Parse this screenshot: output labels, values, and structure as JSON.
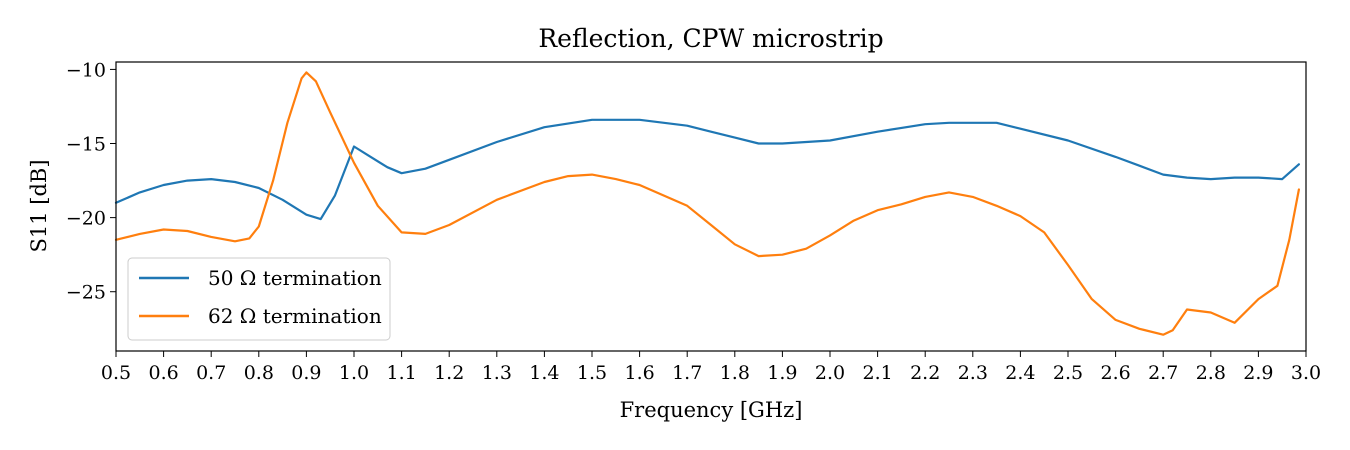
{
  "chart_data": {
    "type": "line",
    "title": "Reflection, CPW microstrip",
    "xlabel": "Frequency [GHz]",
    "ylabel": "S11 [dB]",
    "xlim": [
      0.5,
      3.0
    ],
    "ylim": [
      -29.0,
      -9.5
    ],
    "xticks": [
      "0.5",
      "0.6",
      "0.7",
      "0.8",
      "0.9",
      "1.0",
      "1.1",
      "1.2",
      "1.3",
      "1.4",
      "1.5",
      "1.6",
      "1.7",
      "1.8",
      "1.9",
      "2.0",
      "2.1",
      "2.2",
      "2.3",
      "2.4",
      "2.5",
      "2.6",
      "2.7",
      "2.8",
      "2.9",
      "3.0"
    ],
    "yticks": [
      {
        "value": -10,
        "label": "−10"
      },
      {
        "value": -15,
        "label": "−15"
      },
      {
        "value": -20,
        "label": "−20"
      },
      {
        "value": -25,
        "label": "−25"
      }
    ],
    "grid": false,
    "legend_position": "lower-left",
    "series": [
      {
        "name": "50 Ω termination",
        "color": "#1f77b4",
        "x": [
          0.5,
          0.55,
          0.6,
          0.65,
          0.7,
          0.75,
          0.8,
          0.85,
          0.9,
          0.93,
          0.96,
          1.0,
          1.03,
          1.07,
          1.1,
          1.15,
          1.2,
          1.3,
          1.4,
          1.5,
          1.6,
          1.7,
          1.75,
          1.8,
          1.85,
          1.9,
          2.0,
          2.1,
          2.2,
          2.25,
          2.3,
          2.35,
          2.4,
          2.5,
          2.6,
          2.65,
          2.7,
          2.75,
          2.8,
          2.85,
          2.9,
          2.95,
          2.985
        ],
        "y": [
          -19.0,
          -18.3,
          -17.8,
          -17.5,
          -17.4,
          -17.6,
          -18.0,
          -18.8,
          -19.8,
          -20.1,
          -18.5,
          -15.2,
          -15.8,
          -16.6,
          -17.0,
          -16.7,
          -16.1,
          -14.9,
          -13.9,
          -13.4,
          -13.4,
          -13.8,
          -14.2,
          -14.6,
          -15.0,
          -15.0,
          -14.8,
          -14.2,
          -13.7,
          -13.6,
          -13.6,
          -13.6,
          -14.0,
          -14.8,
          -15.9,
          -16.5,
          -17.1,
          -17.3,
          -17.4,
          -17.3,
          -17.3,
          -17.4,
          -16.4
        ]
      },
      {
        "name": "62 Ω termination",
        "color": "#ff7f0e",
        "x": [
          0.5,
          0.55,
          0.6,
          0.65,
          0.7,
          0.75,
          0.78,
          0.8,
          0.83,
          0.86,
          0.89,
          0.9,
          0.92,
          0.95,
          1.0,
          1.05,
          1.1,
          1.15,
          1.2,
          1.3,
          1.4,
          1.45,
          1.5,
          1.55,
          1.6,
          1.7,
          1.75,
          1.8,
          1.85,
          1.9,
          1.95,
          2.0,
          2.05,
          2.1,
          2.15,
          2.2,
          2.25,
          2.3,
          2.35,
          2.4,
          2.45,
          2.5,
          2.55,
          2.6,
          2.65,
          2.7,
          2.72,
          2.75,
          2.8,
          2.85,
          2.9,
          2.94,
          2.965,
          2.985
        ],
        "y": [
          -21.5,
          -21.1,
          -20.8,
          -20.9,
          -21.3,
          -21.6,
          -21.4,
          -20.6,
          -17.5,
          -13.6,
          -10.6,
          -10.2,
          -10.8,
          -12.9,
          -16.3,
          -19.2,
          -21.0,
          -21.1,
          -20.5,
          -18.8,
          -17.6,
          -17.2,
          -17.1,
          -17.4,
          -17.8,
          -19.2,
          -20.5,
          -21.8,
          -22.6,
          -22.5,
          -22.1,
          -21.2,
          -20.2,
          -19.5,
          -19.1,
          -18.6,
          -18.3,
          -18.6,
          -19.2,
          -19.9,
          -21.0,
          -23.2,
          -25.5,
          -26.9,
          -27.5,
          -27.9,
          -27.6,
          -26.2,
          -26.4,
          -27.1,
          -25.5,
          -24.6,
          -21.5,
          -18.1
        ]
      }
    ]
  }
}
